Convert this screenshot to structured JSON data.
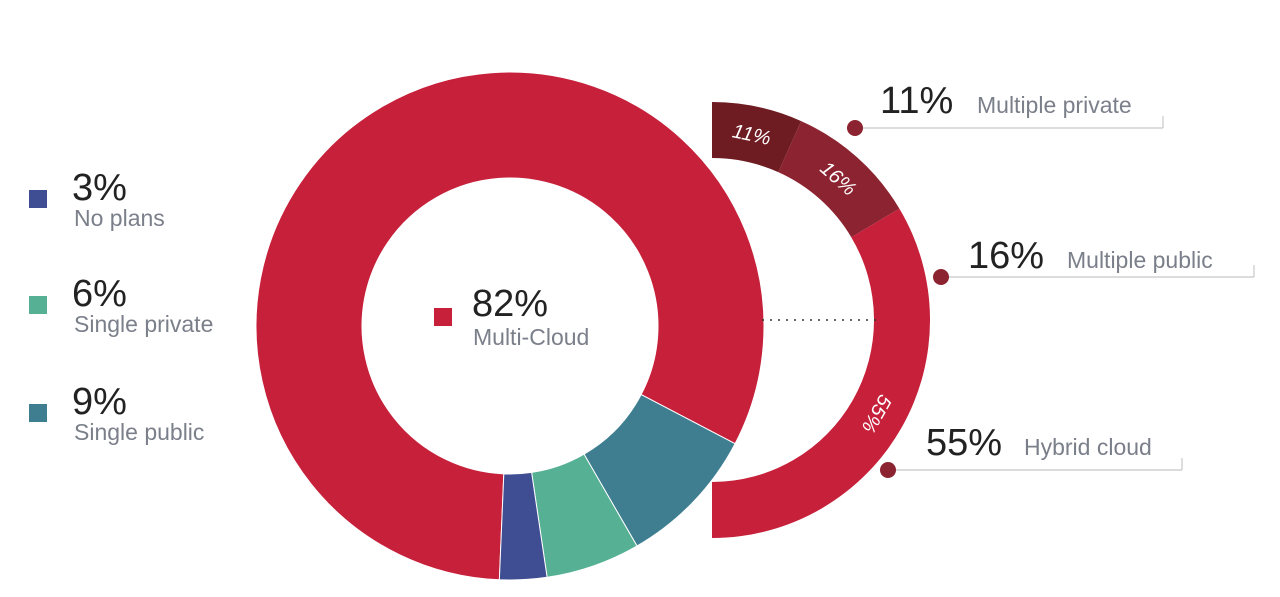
{
  "chart_data": [
    {
      "type": "pie",
      "variant": "donut",
      "slices": [
        {
          "label": "No plans",
          "value": 3,
          "display": "3%",
          "color": "#3f4e93"
        },
        {
          "label": "Single private",
          "value": 6,
          "display": "6%",
          "color": "#55b094"
        },
        {
          "label": "Single public",
          "value": 9,
          "display": "9%",
          "color": "#3e7e90"
        },
        {
          "label": "Multi-Cloud",
          "value": 82,
          "display": "82%",
          "color": "#c6203a"
        }
      ],
      "legend_placement": "left"
    },
    {
      "type": "pie",
      "variant": "partial-ring breakdown of Multi-Cloud",
      "slices": [
        {
          "label": "Multiple private",
          "value": 11,
          "display": "11%",
          "color": "#6e1c22"
        },
        {
          "label": "Multiple public",
          "value": 16,
          "display": "16%",
          "color": "#8c2330"
        },
        {
          "label": "Hybrid cloud",
          "value": 55,
          "display": "55%",
          "color": "#c6203a"
        }
      ]
    }
  ]
}
